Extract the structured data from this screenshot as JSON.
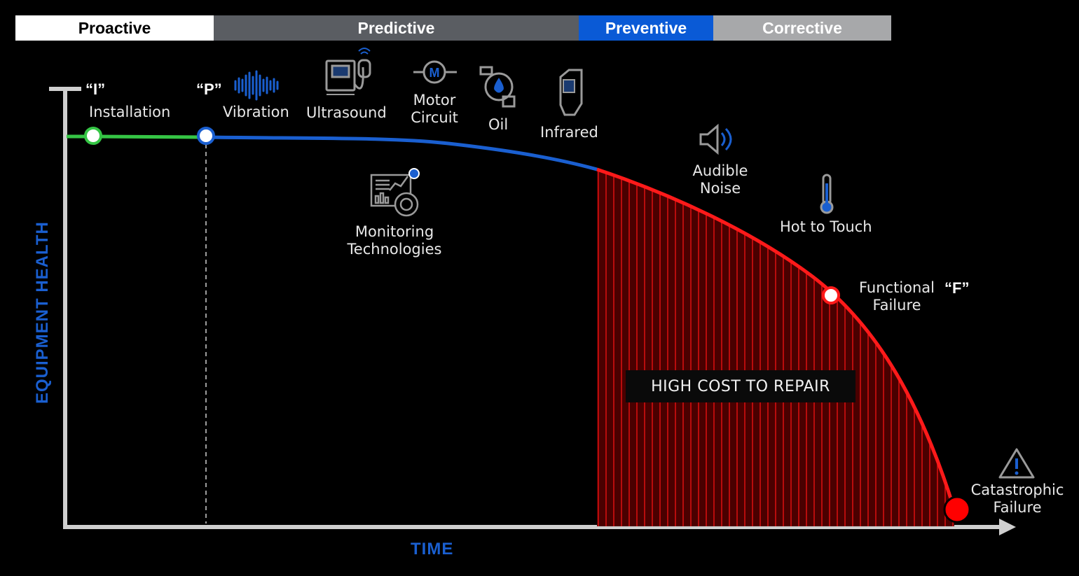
{
  "phases": [
    {
      "label": "Proactive",
      "bg": "#ffffff",
      "fg": "#000000"
    },
    {
      "label": "Predictive",
      "bg": "#5a5d62",
      "fg": "#ffffff"
    },
    {
      "label": "Preventive",
      "bg": "#0a5ad6",
      "fg": "#ffffff"
    },
    {
      "label": "Corrective",
      "bg": "#a7a8aa",
      "fg": "#ffffff"
    }
  ],
  "axes": {
    "y_title": "EQUIPMENT HEALTH",
    "x_title": "TIME"
  },
  "markers": {
    "i_quote": "“I”",
    "p_quote": "“P”",
    "f_quote": "“F”"
  },
  "labels": {
    "installation": "Installation",
    "vibration": "Vibration",
    "ultrasound": "Ultrasound",
    "motor_circuit_1": "Motor",
    "motor_circuit_2": "Circuit",
    "oil": "Oil",
    "infrared": "Infrared",
    "monitoring_1": "Monitoring",
    "monitoring_2": "Technologies",
    "audible_1": "Audible",
    "audible_2": "Noise",
    "hot": "Hot to Touch",
    "functional_1": "Functional",
    "functional_2": "Failure",
    "catastrophic_1": "Catastrophic",
    "catastrophic_2": "Failure"
  },
  "region_label": "HIGH COST TO REPAIR",
  "colors": {
    "proactive_line": "#35c545",
    "predictive_line": "#1a5fd0",
    "failure_line": "#ff1a1a",
    "axis": "#cfcfcf"
  },
  "icons": [
    "vibration-wave-icon",
    "ultrasound-device-icon",
    "motor-icon",
    "oil-drop-icon",
    "infrared-thermometer-icon",
    "monitoring-dashboard-icon",
    "speaker-icon",
    "thermometer-icon",
    "warning-triangle-icon"
  ]
}
